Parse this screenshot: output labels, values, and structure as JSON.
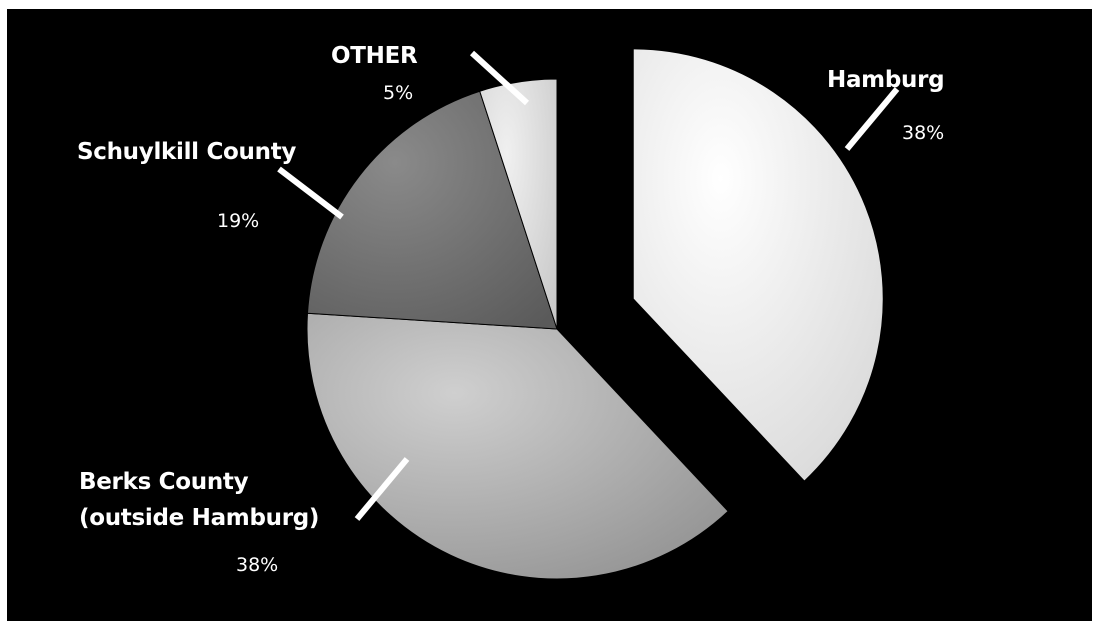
{
  "chart_data": {
    "type": "pie",
    "slices": [
      {
        "label": "Hamburg",
        "value": 38,
        "value_label": "38%",
        "color": "#ffffff",
        "exploded": true
      },
      {
        "label": "Berks County",
        "label_line2": "(outside Hamburg)",
        "value": 38,
        "value_label": "38%",
        "color": "#b9b9b9",
        "exploded": false
      },
      {
        "label": "Schuylkill County",
        "value": 19,
        "value_label": "19%",
        "color": "#7b7b7b",
        "exploded": false
      },
      {
        "label": "OTHER",
        "value": 5,
        "value_label": "5%",
        "color": "#e2e2e2",
        "exploded": false
      }
    ],
    "background": "#000000",
    "legend": "none",
    "data_labels": "outside-with-leader-lines"
  }
}
